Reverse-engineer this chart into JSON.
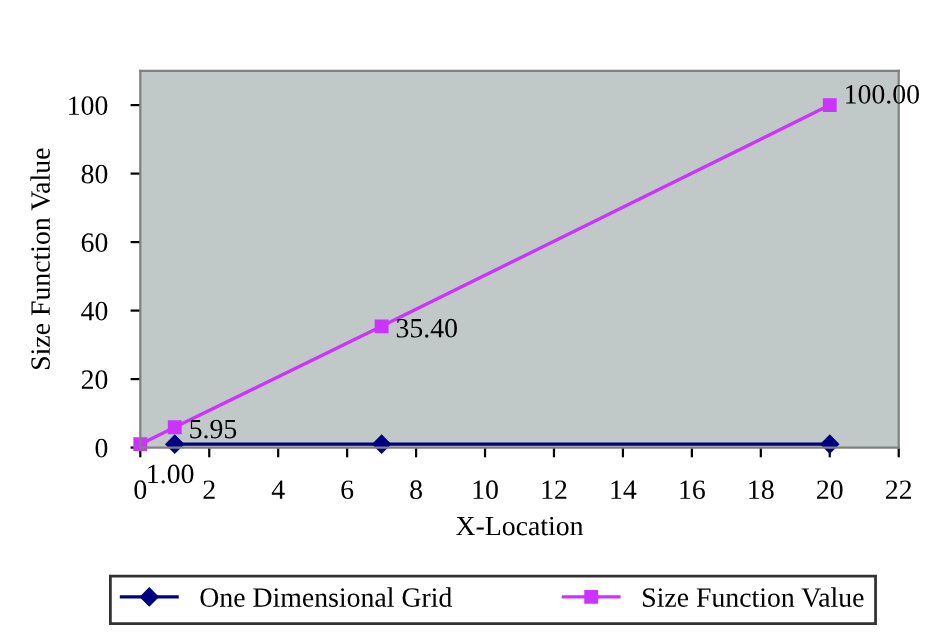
{
  "chart_data": {
    "type": "line",
    "xlabel": "X-Location",
    "ylabel": "Size Function Value",
    "x": [
      0,
      1,
      7,
      20
    ],
    "series": [
      {
        "name": "One Dimensional Grid",
        "color": "#000080",
        "marker": "diamond",
        "values": [
          null,
          1,
          1,
          1
        ]
      },
      {
        "name": "Size Function Value",
        "color": "#cc33ff",
        "marker": "square",
        "values": [
          1.0,
          5.95,
          35.4,
          100.0
        ],
        "value_labels": [
          "1.00",
          "5.95",
          "35.40",
          "100.00"
        ]
      }
    ],
    "xlim": [
      0,
      22
    ],
    "xticks": [
      0,
      2,
      4,
      6,
      8,
      10,
      12,
      14,
      16,
      18,
      20,
      22
    ],
    "ylim": [
      0,
      110
    ],
    "yticks": [
      0,
      20,
      40,
      60,
      80,
      100
    ],
    "grid": false,
    "legend": "bottom",
    "line_style": "solid"
  }
}
